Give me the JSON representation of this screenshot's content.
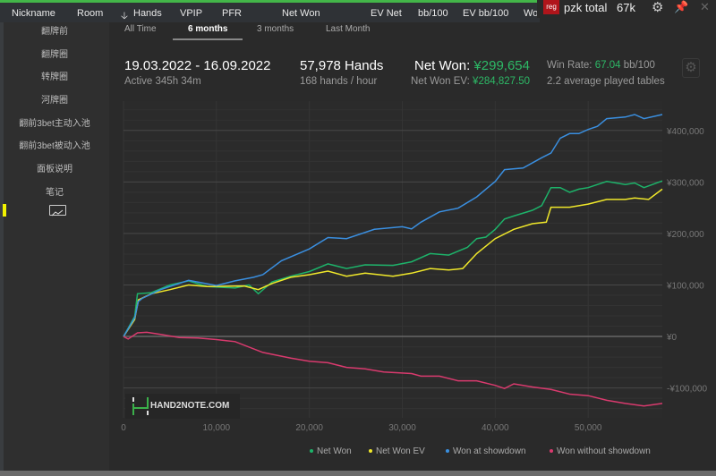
{
  "header": {
    "columns": [
      "Nickname",
      "Room",
      "Hands",
      "VPIP",
      "PFR",
      "Net Won",
      "EV Net",
      "bb/100",
      "EV bb/100",
      "Wo"
    ],
    "sort_icon": "arrow-down-icon"
  },
  "topright": {
    "badge": "reg",
    "name": "pzk total",
    "hands": "67k",
    "icons": [
      "gear-icon",
      "pin-icon",
      "close-icon"
    ]
  },
  "sidebar": {
    "items": [
      "翻牌前",
      "翻牌圈",
      "转牌圈",
      "河牌圈",
      "翻前3bet主动入池",
      "翻前3bet被动入池",
      "面板说明",
      "笔记"
    ],
    "active_icon": "chart-icon"
  },
  "tabs": [
    {
      "label": "All Time"
    },
    {
      "label": "6 months",
      "active": true
    },
    {
      "label": "3 months"
    },
    {
      "label": "Last Month"
    }
  ],
  "stats": {
    "date_range": "19.03.2022 - 16.09.2022",
    "active": "Active 345h 34m",
    "hands": "57,978 Hands",
    "hands_per_hour": "168 hands / hour",
    "net_won_label": "Net Won:",
    "net_won_value": "¥299,654",
    "net_won_ev_label": "Net Won  EV:",
    "net_won_ev_value": "¥284,827.50",
    "win_rate_label": "Win Rate:",
    "win_rate_value": "67.04",
    "win_rate_unit": "bb/100",
    "tables": "2.2 average played tables"
  },
  "logo_text": "HAND2NOTE.COM",
  "colors": {
    "accent_green": "#2db866",
    "net_won": "#1db36a",
    "net_won_ev": "#f0e82a",
    "showdown": "#3a8fe0",
    "no_showdown": "#d93a6e"
  },
  "chart_data": {
    "type": "line",
    "xlim": [
      0,
      57978
    ],
    "ylim": [
      -158000,
      457000
    ],
    "grid": true,
    "legend": "bottom-right",
    "x_ticks": [
      0,
      10000,
      20000,
      30000,
      40000,
      50000
    ],
    "x_tick_labels": [
      "0",
      "10,000",
      "20,000",
      "30,000",
      "40,000",
      "50,000"
    ],
    "y_ticks": [
      -100000,
      0,
      100000,
      200000,
      300000,
      400000
    ],
    "y_tick_labels": [
      "-¥100,000",
      "¥0",
      "¥100,000",
      "¥200,000",
      "¥300,000",
      "¥400,000"
    ],
    "series": [
      {
        "name": "Net Won",
        "color": "#1db36a",
        "points": [
          [
            0,
            0
          ],
          [
            1200,
            39000
          ],
          [
            1500,
            83000
          ],
          [
            3000,
            85000
          ],
          [
            5000,
            100000
          ],
          [
            7000,
            108000
          ],
          [
            9000,
            97000
          ],
          [
            12000,
            94000
          ],
          [
            13500,
            100000
          ],
          [
            14500,
            83000
          ],
          [
            16000,
            106000
          ],
          [
            18000,
            117000
          ],
          [
            20000,
            126000
          ],
          [
            22000,
            141000
          ],
          [
            24000,
            132000
          ],
          [
            26000,
            139000
          ],
          [
            29000,
            138000
          ],
          [
            31000,
            145000
          ],
          [
            33000,
            161000
          ],
          [
            35000,
            158000
          ],
          [
            37000,
            173000
          ],
          [
            38000,
            190000
          ],
          [
            39000,
            193000
          ],
          [
            40000,
            208000
          ],
          [
            41000,
            228000
          ],
          [
            42000,
            234000
          ],
          [
            44000,
            245000
          ],
          [
            45000,
            254000
          ],
          [
            46000,
            289000
          ],
          [
            47000,
            289000
          ],
          [
            48000,
            280000
          ],
          [
            49000,
            286000
          ],
          [
            50000,
            289000
          ],
          [
            52000,
            301000
          ],
          [
            54000,
            295000
          ],
          [
            55000,
            298000
          ],
          [
            56000,
            289000
          ],
          [
            57978,
            302000
          ]
        ]
      },
      {
        "name": "Net Won  EV",
        "color": "#f0e82a",
        "points": [
          [
            0,
            0
          ],
          [
            1200,
            33000
          ],
          [
            1600,
            71000
          ],
          [
            3000,
            83000
          ],
          [
            5000,
            91000
          ],
          [
            7000,
            100000
          ],
          [
            9000,
            97000
          ],
          [
            13000,
            98000
          ],
          [
            14500,
            91000
          ],
          [
            16000,
            103000
          ],
          [
            18000,
            115000
          ],
          [
            20000,
            120000
          ],
          [
            22000,
            127000
          ],
          [
            24000,
            117000
          ],
          [
            26000,
            123000
          ],
          [
            29000,
            117000
          ],
          [
            31000,
            123000
          ],
          [
            33000,
            132000
          ],
          [
            35000,
            129000
          ],
          [
            36500,
            132000
          ],
          [
            38000,
            161000
          ],
          [
            40000,
            190000
          ],
          [
            42000,
            208000
          ],
          [
            44000,
            219000
          ],
          [
            45500,
            222000
          ],
          [
            46000,
            251000
          ],
          [
            48000,
            251000
          ],
          [
            50000,
            257000
          ],
          [
            52000,
            266000
          ],
          [
            54000,
            266000
          ],
          [
            55000,
            269000
          ],
          [
            56500,
            266000
          ],
          [
            57978,
            286000
          ]
        ]
      },
      {
        "name": "Won at showdown",
        "color": "#3a8fe0",
        "points": [
          [
            0,
            0
          ],
          [
            1200,
            36000
          ],
          [
            1600,
            68000
          ],
          [
            2000,
            74000
          ],
          [
            4000,
            91000
          ],
          [
            7000,
            109000
          ],
          [
            10000,
            99000
          ],
          [
            12000,
            108000
          ],
          [
            14000,
            115000
          ],
          [
            15000,
            120000
          ],
          [
            17000,
            147000
          ],
          [
            20000,
            170000
          ],
          [
            22000,
            192000
          ],
          [
            24000,
            190000
          ],
          [
            27000,
            208000
          ],
          [
            30000,
            213000
          ],
          [
            31000,
            209000
          ],
          [
            32000,
            222000
          ],
          [
            34000,
            242000
          ],
          [
            36000,
            249000
          ],
          [
            38000,
            271000
          ],
          [
            39000,
            286000
          ],
          [
            40000,
            301000
          ],
          [
            41000,
            324000
          ],
          [
            43000,
            327000
          ],
          [
            45000,
            347000
          ],
          [
            46000,
            356000
          ],
          [
            47000,
            385000
          ],
          [
            48000,
            394000
          ],
          [
            49000,
            394000
          ],
          [
            50000,
            402000
          ],
          [
            51000,
            408000
          ],
          [
            52000,
            423000
          ],
          [
            54000,
            426000
          ],
          [
            55000,
            431000
          ],
          [
            56000,
            423000
          ],
          [
            57978,
            431000
          ]
        ]
      },
      {
        "name": "Won without showdown",
        "color": "#d93a6e",
        "points": [
          [
            0,
            0
          ],
          [
            500,
            -5000
          ],
          [
            1500,
            7000
          ],
          [
            2500,
            8000
          ],
          [
            4000,
            4000
          ],
          [
            6000,
            -2000
          ],
          [
            8000,
            -3000
          ],
          [
            10000,
            -6000
          ],
          [
            12000,
            -10000
          ],
          [
            15000,
            -31000
          ],
          [
            18000,
            -42000
          ],
          [
            20000,
            -48000
          ],
          [
            22000,
            -51000
          ],
          [
            24000,
            -60000
          ],
          [
            26000,
            -63000
          ],
          [
            28000,
            -69000
          ],
          [
            31000,
            -72000
          ],
          [
            32000,
            -77000
          ],
          [
            34000,
            -77000
          ],
          [
            36000,
            -86000
          ],
          [
            38000,
            -86000
          ],
          [
            40000,
            -95000
          ],
          [
            41000,
            -101000
          ],
          [
            42000,
            -92000
          ],
          [
            44000,
            -98000
          ],
          [
            46000,
            -103000
          ],
          [
            48000,
            -112000
          ],
          [
            50000,
            -115000
          ],
          [
            52000,
            -124000
          ],
          [
            54000,
            -130000
          ],
          [
            56000,
            -135000
          ],
          [
            57978,
            -130000
          ]
        ]
      }
    ]
  }
}
